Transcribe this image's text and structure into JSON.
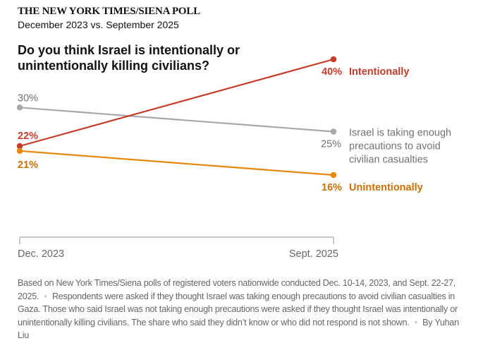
{
  "header": {
    "kicker": "THE NEW YORK TIMES/SIENA POLL",
    "subkicker": "December 2023 vs. September 2025",
    "title": "Do you think Israel is intentionally or unintentionally killing civilians?"
  },
  "chart_data": {
    "type": "line",
    "title": "Do you think Israel is intentionally or unintentionally killing civilians?",
    "x": [
      "Dec. 2023",
      "Sept. 2025"
    ],
    "xlabel": "",
    "ylabel": "",
    "ylim": [
      16,
      40
    ],
    "grid": false,
    "series": [
      {
        "name": "Israel is taking enough precautions to avoid civilian casualties",
        "label_lines": [
          "Israel is taking enough",
          "precautions to avoid",
          "civilian casualties"
        ],
        "values": [
          30,
          25
        ],
        "value_labels": [
          "30%",
          "25%"
        ],
        "color": "#a8a8a8",
        "label_color": "#727272",
        "bold": false
      },
      {
        "name": "Intentionally",
        "label_lines": [
          "Intentionally"
        ],
        "values": [
          22,
          40
        ],
        "value_labels": [
          "22%",
          "40%"
        ],
        "color": "#c63c2b",
        "label_color": "#c63c2b",
        "bold": true
      },
      {
        "name": "Unintentionally",
        "label_lines": [
          "Unintentionally"
        ],
        "values": [
          21,
          16
        ],
        "value_labels": [
          "21%",
          "16%"
        ],
        "color": "#e8860c",
        "label_color": "#c8700a",
        "bold": true
      }
    ]
  },
  "footnote": {
    "part1": "Based on New York Times/Siena polls of registered voters nationwide conducted Dec. 10-14, 2023, and Sept. 22-27, 2025.",
    "separator": "•",
    "part2": "Respondents were asked if they thought Israel was taking enough precautions to avoid civilian casualties in Gaza. Those who said Israel was not taking enough precautions were asked if they thought Israel was intentionally or unintentionally killing civilians. The share who said they didn’t know or who did not respond is not shown.",
    "byline": "By Yuhan Liu"
  }
}
